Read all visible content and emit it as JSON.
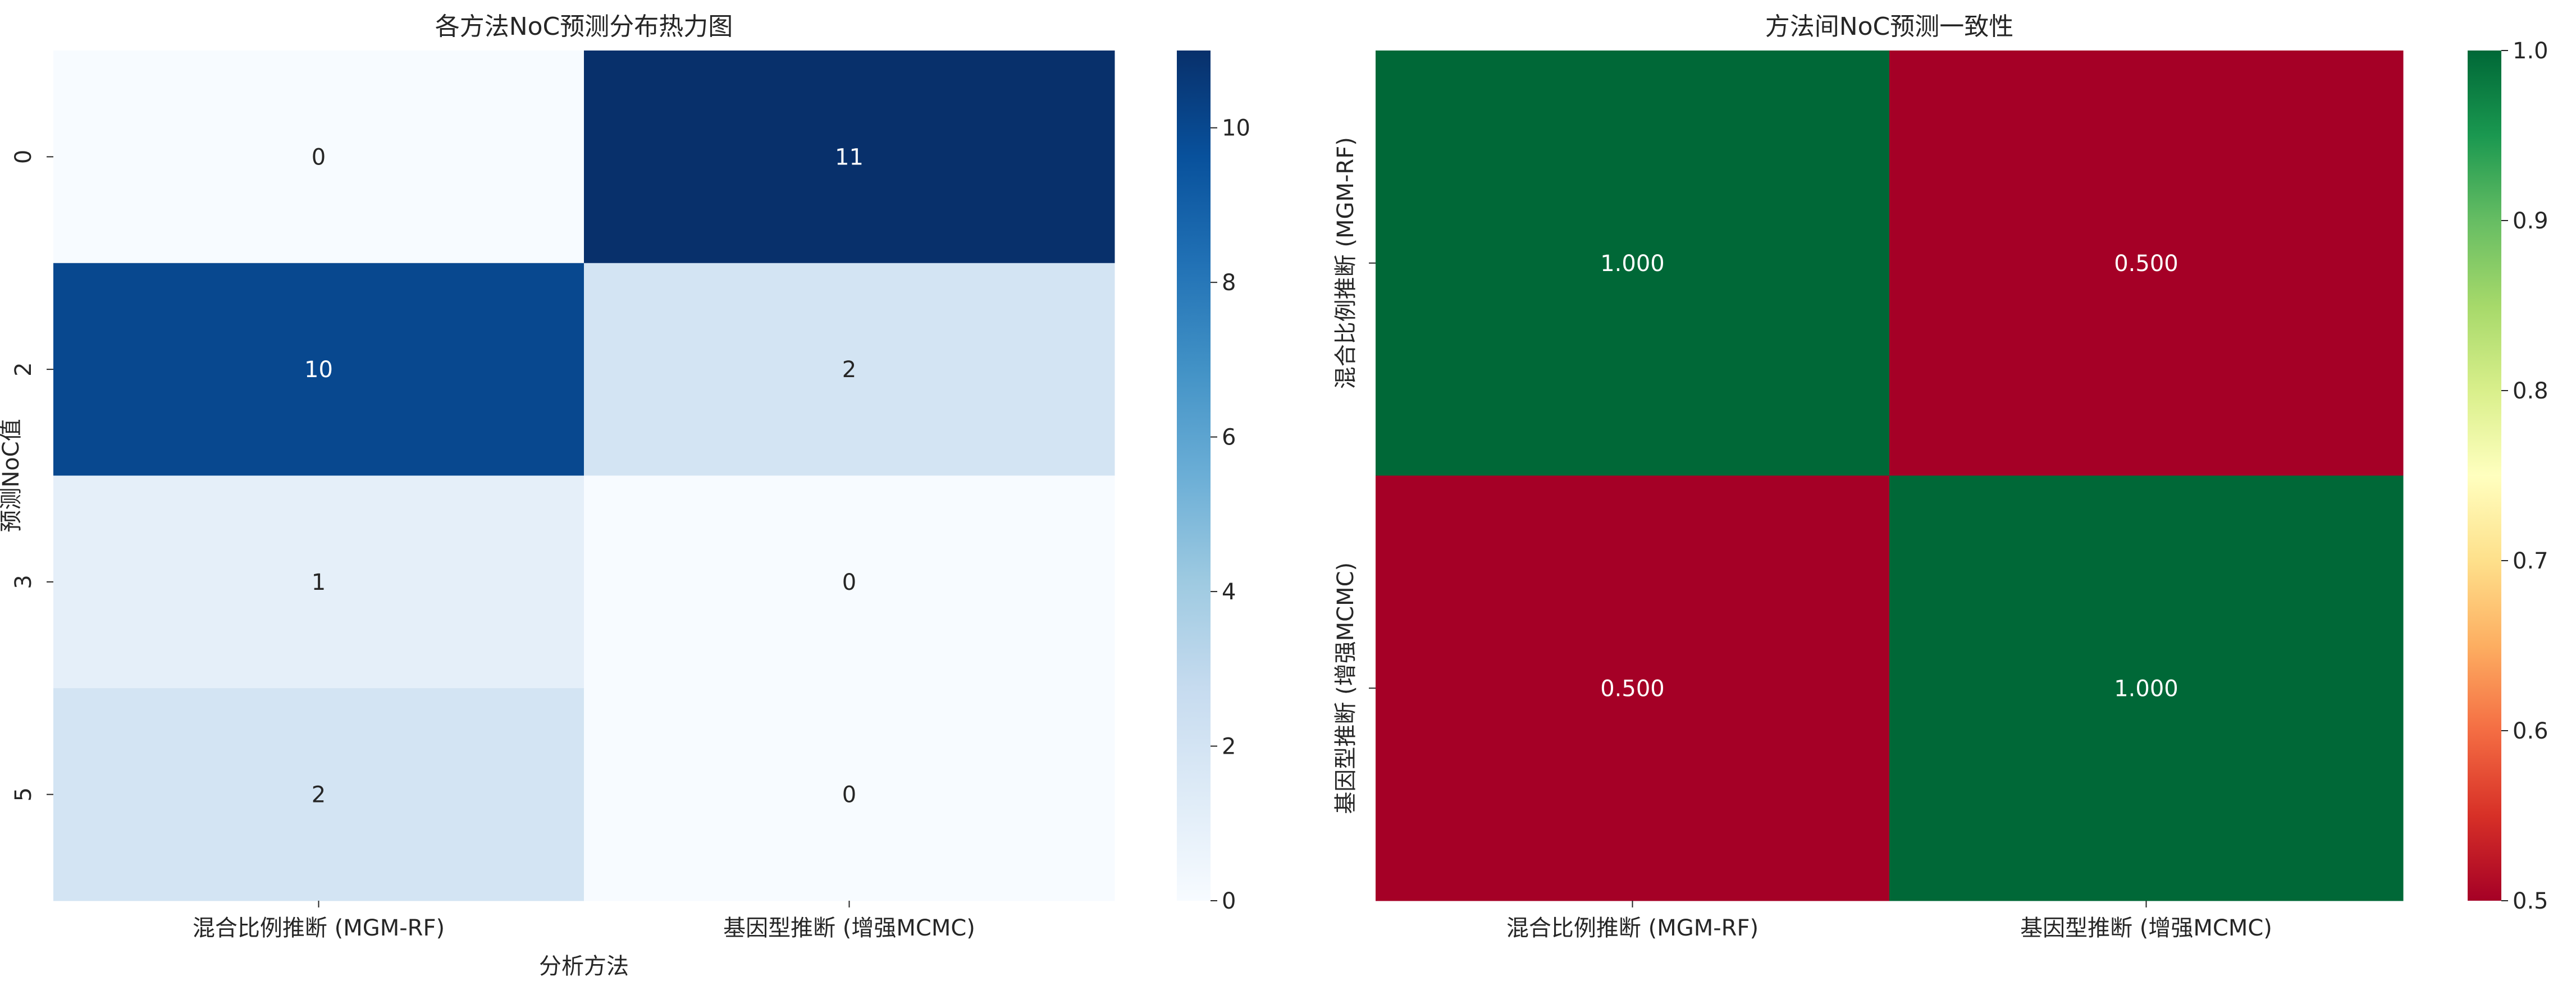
{
  "chart_data": [
    {
      "type": "heatmap",
      "title": "各方法NoC预测分布热力图",
      "xlabel": "分析方法",
      "ylabel": "预测NoC值",
      "x_categories": [
        "混合比例推断 (MGM-RF)",
        "基因型推断 (增强MCMC)"
      ],
      "y_categories": [
        "0",
        "2",
        "3",
        "5"
      ],
      "values": [
        [
          0,
          11
        ],
        [
          10,
          2
        ],
        [
          1,
          0
        ],
        [
          2,
          0
        ]
      ],
      "cell_labels": [
        [
          "0",
          "11"
        ],
        [
          "10",
          "2"
        ],
        [
          "1",
          "0"
        ],
        [
          "2",
          "0"
        ]
      ],
      "colormap": "Blues",
      "color_stops": [
        "#f7fbff",
        "#deebf7",
        "#c6dbef",
        "#9ecae1",
        "#6baed6",
        "#4292c6",
        "#2171b5",
        "#08519c",
        "#08306b"
      ],
      "colorbar": {
        "vmin": 0,
        "vmax": 11,
        "ticks": [
          0,
          2,
          4,
          6,
          8,
          10
        ],
        "tick_labels": [
          "0",
          "2",
          "4",
          "6",
          "8",
          "10"
        ]
      }
    },
    {
      "type": "heatmap",
      "title": "方法间NoC预测一致性",
      "xlabel": "",
      "ylabel": "",
      "x_categories": [
        "混合比例推断 (MGM-RF)",
        "基因型推断 (增强MCMC)"
      ],
      "y_categories": [
        "混合比例推断 (MGM-RF)",
        "基因型推断 (增强MCMC)"
      ],
      "values": [
        [
          1.0,
          0.5
        ],
        [
          0.5,
          1.0
        ]
      ],
      "cell_labels": [
        [
          "1.000",
          "0.500"
        ],
        [
          "0.500",
          "1.000"
        ]
      ],
      "colormap": "RdYlGn",
      "color_stops": [
        "#a50026",
        "#d73027",
        "#f46d43",
        "#fdae61",
        "#fee08b",
        "#ffffbf",
        "#d9ef8b",
        "#a6d96a",
        "#66bd63",
        "#1a9850",
        "#006837"
      ],
      "colorbar": {
        "vmin": 0.5,
        "vmax": 1.0,
        "ticks": [
          0.5,
          0.6,
          0.7,
          0.8,
          0.9,
          1.0
        ],
        "tick_labels": [
          "0.5",
          "0.6",
          "0.7",
          "0.8",
          "0.9",
          "1.0"
        ]
      }
    }
  ]
}
